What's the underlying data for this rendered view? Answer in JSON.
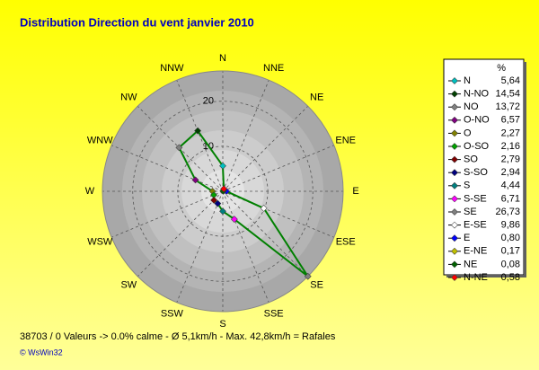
{
  "chart_data": {
    "type": "radar",
    "title": "Distribution Direction du vent   janvier 2010",
    "direction": "counterclockwise",
    "categories": [
      "N",
      "NNW",
      "NW",
      "WNW",
      "W",
      "WSW",
      "SW",
      "SSW",
      "S",
      "SSE",
      "SE",
      "ESE",
      "E",
      "ENE",
      "NE",
      "NNE"
    ],
    "legend_title": "%",
    "legend_labels": [
      "N",
      "N-NO",
      "NO",
      "O-NO",
      "O",
      "O-SO",
      "SO",
      "S-SO",
      "S",
      "S-SE",
      "SE",
      "E-SE",
      "E",
      "E-NE",
      "NE",
      "N-NE"
    ],
    "values": [
      5.64,
      14.54,
      13.72,
      6.57,
      2.27,
      2.16,
      2.79,
      2.94,
      4.44,
      6.71,
      26.73,
      9.86,
      0.8,
      0.17,
      0.08,
      0.58
    ],
    "value_labels": [
      "5,64",
      "14,54",
      "13,72",
      "6,57",
      "2,27",
      "2,16",
      "2,79",
      "2,94",
      "4,44",
      "6,71",
      "26,73",
      "9,86",
      "0,80",
      "0,17",
      "0,08",
      "0,58"
    ],
    "point_colors": [
      "#00c0c0",
      "#004000",
      "#808080",
      "#800080",
      "#808000",
      "#00a000",
      "#800000",
      "#000080",
      "#008080",
      "#ff00ff",
      "#808080",
      "#ffffff",
      "#0000ff",
      "#c0c000",
      "#006000",
      "#ff0000"
    ],
    "color": "#008000",
    "rlim": [
      0,
      26.73
    ],
    "rticks": [
      10,
      20
    ],
    "grid": true,
    "footer": "38703 / 0 Valeurs  -> 0.0% calme   -   Ø 5,1km/h  -  Max. 42,8km/h = Rafales",
    "copyright": "© WsWin32"
  }
}
